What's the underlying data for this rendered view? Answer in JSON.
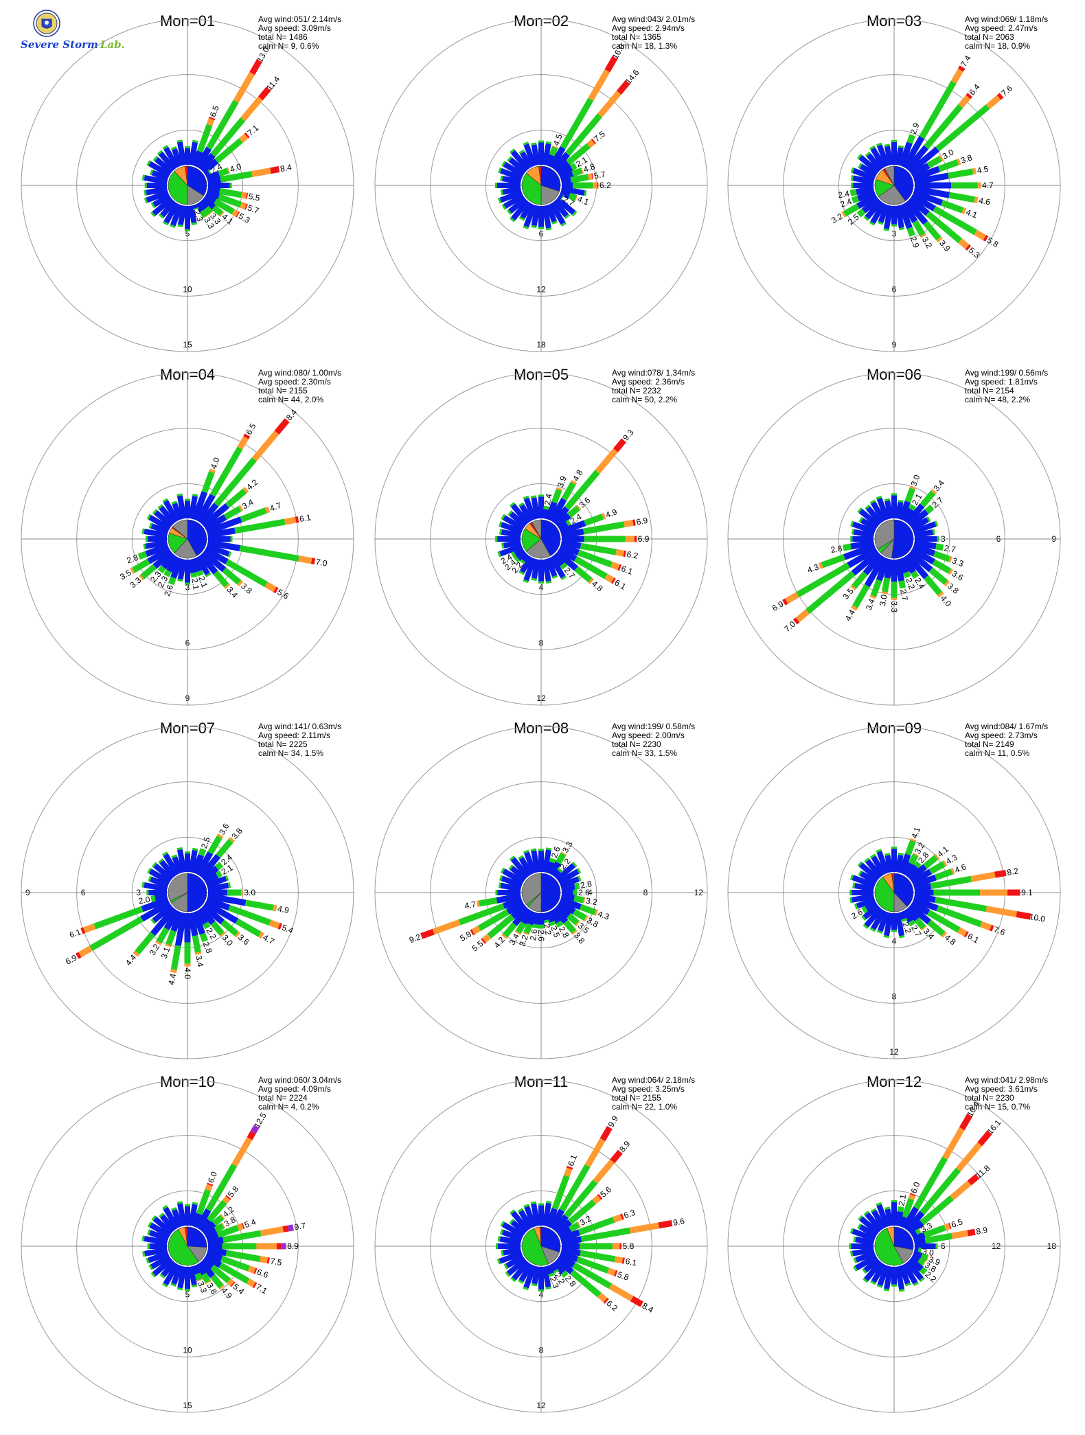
{
  "logo": {
    "text_main": "Severe Storm",
    "text_lab": "Lab."
  },
  "colors": {
    "blue": "#0a1ee6",
    "green": "#1fcf1f",
    "orange": "#ff9a33",
    "red": "#f01414",
    "purple": "#9a2bd6",
    "gray": "#8a8a8a",
    "ring": "#9a9a9a",
    "axis": "#888888"
  },
  "chart_data": [
    {
      "type": "wind-rose",
      "title": "Mon=01",
      "stats": {
        "avg_wind": "Avg wind:051/ 2.14m/s",
        "avg_speed": "Avg speed: 3.09m/s",
        "total": "total N=     1486",
        "calm": "calm N=    9,   0.6%"
      },
      "rings": [
        5,
        10,
        15
      ],
      "ring_label_dir": 180,
      "bars": [
        {
          "dir": 20,
          "value": 6.5
        },
        {
          "dir": 30,
          "value": 13.0
        },
        {
          "dir": 40,
          "value": 11.4
        },
        {
          "dir": 50,
          "value": 7.1
        },
        {
          "dir": 60,
          "value": 2.4
        },
        {
          "dir": 70,
          "value": 4.0
        },
        {
          "dir": 80,
          "value": 8.4
        },
        {
          "dir": 100,
          "value": 5.5
        },
        {
          "dir": 110,
          "value": 5.7
        },
        {
          "dir": 120,
          "value": 5.3
        },
        {
          "dir": 130,
          "value": 4.1
        },
        {
          "dir": 140,
          "value": 3.3
        },
        {
          "dir": 150,
          "value": 3.3
        },
        {
          "dir": 160,
          "value": 2.3
        }
      ],
      "pie": [
        0.34,
        0.16,
        0.38,
        0.1,
        0.02,
        0
      ]
    },
    {
      "type": "wind-rose",
      "title": "Mon=02",
      "stats": {
        "avg_wind": "Avg wind:043/ 2.01m/s",
        "avg_speed": "Avg speed: 2.94m/s",
        "total": "total N=     1365",
        "calm": "calm N=   18,   1.3%"
      },
      "rings": [
        6,
        12,
        18
      ],
      "ring_label_dir": 180,
      "bars": [
        {
          "dir": 20,
          "value": 4.5
        },
        {
          "dir": 30,
          "value": 16.0
        },
        {
          "dir": 40,
          "value": 14.6
        },
        {
          "dir": 50,
          "value": 7.5
        },
        {
          "dir": 60,
          "value": 2.1
        },
        {
          "dir": 70,
          "value": 4.8
        },
        {
          "dir": 80,
          "value": 5.7
        },
        {
          "dir": 90,
          "value": 6.2
        },
        {
          "dir": 110,
          "value": 4.1
        },
        {
          "dir": 120,
          "value": 2.7
        }
      ],
      "pie": [
        0.3,
        0.2,
        0.36,
        0.12,
        0.02,
        0
      ]
    },
    {
      "type": "wind-rose",
      "title": "Mon=03",
      "stats": {
        "avg_wind": "Avg wind:069/ 1.18m/s",
        "avg_speed": "Avg speed: 2.47m/s",
        "total": "total N=     2063",
        "calm": "calm N=   18,   0.9%"
      },
      "rings": [
        3,
        6,
        9
      ],
      "ring_label_dir": 180,
      "bars": [
        {
          "dir": 20,
          "value": 2.9
        },
        {
          "dir": 30,
          "value": 7.4
        },
        {
          "dir": 40,
          "value": 6.4
        },
        {
          "dir": 50,
          "value": 7.6
        },
        {
          "dir": 60,
          "value": 3.0
        },
        {
          "dir": 70,
          "value": 3.8
        },
        {
          "dir": 80,
          "value": 4.5
        },
        {
          "dir": 90,
          "value": 4.7
        },
        {
          "dir": 100,
          "value": 4.6
        },
        {
          "dir": 110,
          "value": 4.1
        },
        {
          "dir": 120,
          "value": 5.8
        },
        {
          "dir": 130,
          "value": 5.3
        },
        {
          "dir": 140,
          "value": 3.9
        },
        {
          "dir": 150,
          "value": 3.2
        },
        {
          "dir": 160,
          "value": 2.9
        },
        {
          "dir": 230,
          "value": 2.5
        },
        {
          "dir": 240,
          "value": 3.2
        },
        {
          "dir": 250,
          "value": 2.4
        },
        {
          "dir": 260,
          "value": 2.4
        }
      ],
      "pie": [
        0.4,
        0.25,
        0.15,
        0.1,
        0.02,
        0.08
      ]
    },
    {
      "type": "wind-rose",
      "title": "Mon=04",
      "stats": {
        "avg_wind": "Avg wind:080/ 1.00m/s",
        "avg_speed": "Avg speed: 2.30m/s",
        "total": "total N=     2155",
        "calm": "calm N=   44,   2.0%"
      },
      "rings": [
        3,
        6,
        9
      ],
      "ring_label_dir": 180,
      "bars": [
        {
          "dir": 20,
          "value": 4.0
        },
        {
          "dir": 30,
          "value": 6.5
        },
        {
          "dir": 40,
          "value": 8.4
        },
        {
          "dir": 50,
          "value": 4.2
        },
        {
          "dir": 60,
          "value": 3.4
        },
        {
          "dir": 70,
          "value": 4.7
        },
        {
          "dir": 80,
          "value": 6.1
        },
        {
          "dir": 100,
          "value": 7.0
        },
        {
          "dir": 120,
          "value": 5.6
        },
        {
          "dir": 130,
          "value": 3.8
        },
        {
          "dir": 140,
          "value": 3.4
        },
        {
          "dir": 160,
          "value": 2.1
        },
        {
          "dir": 170,
          "value": 2.1
        },
        {
          "dir": 200,
          "value": 2.6
        },
        {
          "dir": 210,
          "value": 2.3
        },
        {
          "dir": 220,
          "value": 2.3
        },
        {
          "dir": 230,
          "value": 3.3
        },
        {
          "dir": 240,
          "value": 3.5
        },
        {
          "dir": 250,
          "value": 2.8
        }
      ],
      "pie": [
        0.42,
        0.2,
        0.18,
        0.05,
        0.01,
        0.14
      ]
    },
    {
      "type": "wind-rose",
      "title": "Mon=05",
      "stats": {
        "avg_wind": "Avg wind:078/ 1.34m/s",
        "avg_speed": "Avg speed: 2.36m/s",
        "total": "total N=     2232",
        "calm": "calm N=   50,   2.2%"
      },
      "rings": [
        4,
        8,
        12
      ],
      "ring_label_dir": 180,
      "bars": [
        {
          "dir": 10,
          "value": 2.4
        },
        {
          "dir": 20,
          "value": 3.9
        },
        {
          "dir": 30,
          "value": 4.8
        },
        {
          "dir": 40,
          "value": 9.3
        },
        {
          "dir": 50,
          "value": 3.6
        },
        {
          "dir": 60,
          "value": 2.4
        },
        {
          "dir": 70,
          "value": 4.9
        },
        {
          "dir": 80,
          "value": 6.9
        },
        {
          "dir": 90,
          "value": 6.9
        },
        {
          "dir": 100,
          "value": 6.2
        },
        {
          "dir": 110,
          "value": 6.1
        },
        {
          "dir": 120,
          "value": 6.1
        },
        {
          "dir": 130,
          "value": 4.8
        },
        {
          "dir": 140,
          "value": 2.7
        },
        {
          "dir": 220,
          "value": 2.2
        },
        {
          "dir": 230,
          "value": 2.4
        },
        {
          "dir": 240,
          "value": 2.4
        }
      ],
      "pie": [
        0.42,
        0.22,
        0.2,
        0.06,
        0.02,
        0.08
      ]
    },
    {
      "type": "wind-rose",
      "title": "Mon=06",
      "stats": {
        "avg_wind": "Avg wind:199/ 0.56m/s",
        "avg_speed": "Avg speed: 1.81m/s",
        "total": "total N=     2154",
        "calm": "calm N=   48,   2.2%"
      },
      "rings": [
        3,
        6,
        9
      ],
      "ring_label_dir": 90,
      "bars": [
        {
          "dir": 20,
          "value": 3.0
        },
        {
          "dir": 30,
          "value": 2.1
        },
        {
          "dir": 40,
          "value": 3.4
        },
        {
          "dir": 50,
          "value": 2.7
        },
        {
          "dir": 100,
          "value": 2.7
        },
        {
          "dir": 110,
          "value": 3.3
        },
        {
          "dir": 120,
          "value": 3.6
        },
        {
          "dir": 130,
          "value": 3.8
        },
        {
          "dir": 140,
          "value": 4.0
        },
        {
          "dir": 150,
          "value": 2.4
        },
        {
          "dir": 160,
          "value": 2.2
        },
        {
          "dir": 170,
          "value": 2.7
        },
        {
          "dir": 180,
          "value": 3.3
        },
        {
          "dir": 190,
          "value": 3.0
        },
        {
          "dir": 200,
          "value": 3.4
        },
        {
          "dir": 210,
          "value": 4.4
        },
        {
          "dir": 220,
          "value": 3.5
        },
        {
          "dir": 230,
          "value": 7.0
        },
        {
          "dir": 240,
          "value": 6.9
        },
        {
          "dir": 250,
          "value": 4.3
        },
        {
          "dir": 260,
          "value": 2.8
        }
      ],
      "pie": [
        0.52,
        0.1,
        0.04,
        0,
        0,
        0.34
      ]
    },
    {
      "type": "wind-rose",
      "title": "Mon=07",
      "stats": {
        "avg_wind": "Avg wind:141/ 0.63m/s",
        "avg_speed": "Avg speed: 2.11m/s",
        "total": "total N=     2225",
        "calm": "calm N=   34,   1.5%"
      },
      "rings": [
        3,
        6,
        9
      ],
      "ring_label_dir": 270,
      "bars": [
        {
          "dir": 20,
          "value": 2.5
        },
        {
          "dir": 30,
          "value": 3.6
        },
        {
          "dir": 40,
          "value": 3.8
        },
        {
          "dir": 50,
          "value": 2.4
        },
        {
          "dir": 60,
          "value": 2.1
        },
        {
          "dir": 90,
          "value": 3.0
        },
        {
          "dir": 100,
          "value": 4.9
        },
        {
          "dir": 110,
          "value": 5.4
        },
        {
          "dir": 120,
          "value": 4.7
        },
        {
          "dir": 130,
          "value": 3.6
        },
        {
          "dir": 140,
          "value": 3.0
        },
        {
          "dir": 150,
          "value": 2.2
        },
        {
          "dir": 160,
          "value": 2.8
        },
        {
          "dir": 170,
          "value": 3.4
        },
        {
          "dir": 180,
          "value": 4.0
        },
        {
          "dir": 190,
          "value": 4.4
        },
        {
          "dir": 200,
          "value": 3.1
        },
        {
          "dir": 210,
          "value": 3.2
        },
        {
          "dir": 220,
          "value": 4.4
        },
        {
          "dir": 240,
          "value": 6.9
        },
        {
          "dir": 250,
          "value": 6.1
        },
        {
          "dir": 260,
          "value": 2.0
        }
      ],
      "pie": [
        0.5,
        0.16,
        0.02,
        0,
        0,
        0.32
      ]
    },
    {
      "type": "wind-rose",
      "title": "Mon=08",
      "stats": {
        "avg_wind": "Avg wind:199/ 0.58m/s",
        "avg_speed": "Avg speed: 2.00m/s",
        "total": "total N=     2230",
        "calm": "calm N=   33,   1.5%"
      },
      "rings": [
        4,
        8,
        12
      ],
      "ring_label_dir": 90,
      "bars": [
        {
          "dir": 20,
          "value": 2.6
        },
        {
          "dir": 30,
          "value": 3.3
        },
        {
          "dir": 40,
          "value": 2.2
        },
        {
          "dir": 80,
          "value": 2.8
        },
        {
          "dir": 90,
          "value": 2.6
        },
        {
          "dir": 100,
          "value": 3.2
        },
        {
          "dir": 110,
          "value": 4.3
        },
        {
          "dir": 120,
          "value": 3.8
        },
        {
          "dir": 130,
          "value": 3.5
        },
        {
          "dir": 140,
          "value": 3.8
        },
        {
          "dir": 150,
          "value": 2.8
        },
        {
          "dir": 160,
          "value": 2.5
        },
        {
          "dir": 170,
          "value": 2.2
        },
        {
          "dir": 180,
          "value": 2.6
        },
        {
          "dir": 190,
          "value": 2.6
        },
        {
          "dir": 200,
          "value": 3.2
        },
        {
          "dir": 210,
          "value": 3.4
        },
        {
          "dir": 220,
          "value": 4.2
        },
        {
          "dir": 230,
          "value": 5.5
        },
        {
          "dir": 240,
          "value": 5.8
        },
        {
          "dir": 250,
          "value": 9.2
        },
        {
          "dir": 260,
          "value": 4.7
        }
      ],
      "pie": [
        0.5,
        0.12,
        0.02,
        0,
        0,
        0.36
      ]
    },
    {
      "type": "wind-rose",
      "title": "Mon=09",
      "stats": {
        "avg_wind": "Avg wind:084/ 1.67m/s",
        "avg_speed": "Avg speed: 2.73m/s",
        "total": "total N=     2149",
        "calm": "calm N=   11,   0.5%"
      },
      "rings": [
        4,
        8,
        12
      ],
      "ring_label_dir": 180,
      "bars": [
        {
          "dir": 20,
          "value": 4.1
        },
        {
          "dir": 30,
          "value": 3.2
        },
        {
          "dir": 40,
          "value": 2.8
        },
        {
          "dir": 50,
          "value": 4.1
        },
        {
          "dir": 60,
          "value": 4.3
        },
        {
          "dir": 70,
          "value": 4.6
        },
        {
          "dir": 80,
          "value": 8.2
        },
        {
          "dir": 90,
          "value": 9.1
        },
        {
          "dir": 100,
          "value": 10.0
        },
        {
          "dir": 110,
          "value": 7.6
        },
        {
          "dir": 120,
          "value": 6.1
        },
        {
          "dir": 130,
          "value": 4.8
        },
        {
          "dir": 140,
          "value": 3.4
        },
        {
          "dir": 150,
          "value": 2.7
        },
        {
          "dir": 160,
          "value": 2.2
        },
        {
          "dir": 240,
          "value": 2.6
        }
      ],
      "pie": [
        0.38,
        0.12,
        0.4,
        0.08,
        0.02,
        0
      ]
    },
    {
      "type": "wind-rose",
      "title": "Mon=10",
      "stats": {
        "avg_wind": "Avg wind:060/ 3.04m/s",
        "avg_speed": "Avg speed: 4.09m/s",
        "total": "total N=     2224",
        "calm": "calm N=    4,   0.2%"
      },
      "rings": [
        5,
        10,
        15
      ],
      "ring_label_dir": 180,
      "bars": [
        {
          "dir": 20,
          "value": 6.0
        },
        {
          "dir": 30,
          "value": 12.5
        },
        {
          "dir": 40,
          "value": 5.8
        },
        {
          "dir": 50,
          "value": 4.2
        },
        {
          "dir": 60,
          "value": 3.8
        },
        {
          "dir": 70,
          "value": 5.4
        },
        {
          "dir": 80,
          "value": 9.7
        },
        {
          "dir": 90,
          "value": 8.9
        },
        {
          "dir": 100,
          "value": 7.5
        },
        {
          "dir": 110,
          "value": 6.6
        },
        {
          "dir": 120,
          "value": 7.1
        },
        {
          "dir": 130,
          "value": 5.4
        },
        {
          "dir": 140,
          "value": 4.9
        },
        {
          "dir": 150,
          "value": 3.8
        },
        {
          "dir": 160,
          "value": 3.3
        }
      ],
      "pie": [
        0.26,
        0.14,
        0.52,
        0.06,
        0.02,
        0
      ]
    },
    {
      "type": "wind-rose",
      "title": "Mon=11",
      "stats": {
        "avg_wind": "Avg wind:064/ 2.18m/s",
        "avg_speed": "Avg speed: 3.25m/s",
        "total": "total N=     2155",
        "calm": "calm N=   22,   1.0%"
      },
      "rings": [
        4,
        8,
        12
      ],
      "ring_label_dir": 180,
      "bars": [
        {
          "dir": 20,
          "value": 6.1
        },
        {
          "dir": 30,
          "value": 9.9
        },
        {
          "dir": 40,
          "value": 8.9
        },
        {
          "dir": 50,
          "value": 5.6
        },
        {
          "dir": 60,
          "value": 3.2
        },
        {
          "dir": 70,
          "value": 6.3
        },
        {
          "dir": 80,
          "value": 9.6
        },
        {
          "dir": 90,
          "value": 5.8
        },
        {
          "dir": 100,
          "value": 6.1
        },
        {
          "dir": 110,
          "value": 5.8
        },
        {
          "dir": 120,
          "value": 8.4
        },
        {
          "dir": 130,
          "value": 6.2
        },
        {
          "dir": 140,
          "value": 2.8
        },
        {
          "dir": 150,
          "value": 2.2
        },
        {
          "dir": 160,
          "value": 2.3
        }
      ],
      "pie": [
        0.3,
        0.14,
        0.5,
        0.05,
        0.01,
        0
      ]
    },
    {
      "type": "wind-rose",
      "title": "Mon=12",
      "stats": {
        "avg_wind": "Avg wind:041/ 2.98m/s",
        "avg_speed": "Avg speed: 3.61m/s",
        "total": "total N=     2230",
        "calm": "calm N=   15,   0.7%"
      },
      "rings": [
        6,
        12,
        18
      ],
      "ring_label_dir": 90,
      "bars": [
        {
          "dir": 20,
          "value": 6.0
        },
        {
          "dir": 10,
          "value": 2.1
        },
        {
          "dir": 30,
          "value": 16.4
        },
        {
          "dir": 40,
          "value": 16.1
        },
        {
          "dir": 50,
          "value": 11.8
        },
        {
          "dir": 60,
          "value": 3.3
        },
        {
          "dir": 70,
          "value": 6.5
        },
        {
          "dir": 80,
          "value": 8.9
        },
        {
          "dir": 100,
          "value": 3.0
        },
        {
          "dir": 110,
          "value": 3.9
        },
        {
          "dir": 120,
          "value": 3.8
        },
        {
          "dir": 130,
          "value": 2.2
        }
      ],
      "pie": [
        0.28,
        0.14,
        0.52,
        0.06,
        0,
        0
      ]
    }
  ]
}
